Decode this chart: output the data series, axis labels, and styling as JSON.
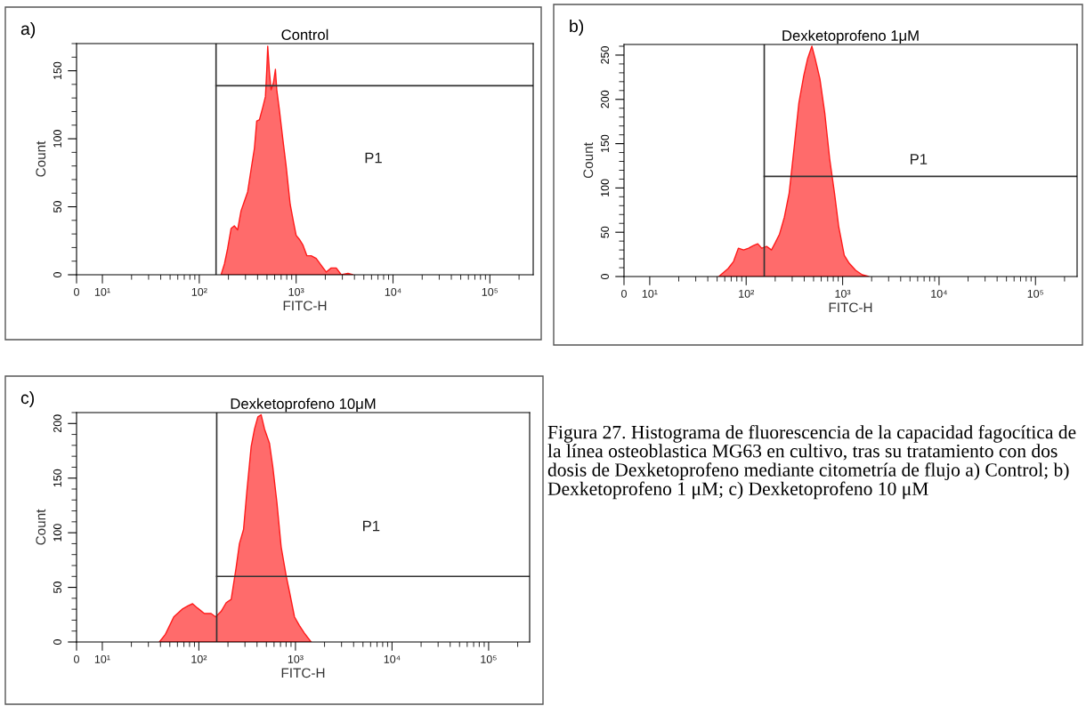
{
  "chart_data": [
    {
      "type": "area",
      "title": "Control",
      "xlabel": "FITC-H",
      "ylabel": "Count",
      "log": "x",
      "xlim": [
        0,
        280000
      ],
      "ylim": [
        0,
        170
      ],
      "xticks": [
        {
          "value": 0,
          "label": "0"
        },
        {
          "value": 10,
          "label": "10¹"
        },
        {
          "value": 100,
          "label": "10²"
        },
        {
          "value": 1000,
          "label": "10³"
        },
        {
          "value": 10000,
          "label": "10⁴"
        },
        {
          "value": 100000,
          "label": "10⁵"
        }
      ],
      "yticks": [
        0,
        50,
        100,
        150
      ],
      "ref_lines": [
        {
          "axis": "x",
          "value": 149,
          "color": "#333333"
        },
        {
          "axis": "y",
          "value": 139,
          "color": "#333333"
        }
      ],
      "annotations": [
        "a)",
        "P1"
      ],
      "series": [
        {
          "color": "#ff6b6b",
          "x": [
            168,
            182,
            196,
            213,
            230,
            249,
            270,
            292,
            316,
            342,
            371,
            392,
            418,
            452,
            482,
            498,
            509,
            530,
            551,
            583,
            611,
            631,
            672,
            728,
            788,
            867,
            938,
            1000,
            1081,
            1172,
            1290,
            1430,
            1610,
            1815,
            2043,
            2300,
            2594,
            2924,
            3428,
            3855
          ],
          "values": [
            0,
            8,
            19,
            34,
            36,
            33,
            47,
            54,
            61,
            77,
            93,
            113,
            114,
            123,
            131,
            151,
            168,
            149,
            136,
            141,
            151,
            136,
            121,
            100,
            80,
            52,
            39,
            29,
            26,
            22,
            14,
            14,
            12,
            7,
            2,
            5,
            5,
            0,
            1,
            0
          ]
        }
      ]
    },
    {
      "type": "area",
      "title": "Dexketoprofeno 1μM",
      "xlabel": "FITC-H",
      "ylabel": "Count",
      "log": "x",
      "xlim": [
        0,
        270000
      ],
      "ylim": [
        0,
        262
      ],
      "xticks": [
        {
          "value": 0,
          "label": "0"
        },
        {
          "value": 10,
          "label": "10¹"
        },
        {
          "value": 100,
          "label": "10²"
        },
        {
          "value": 1000,
          "label": "10³"
        },
        {
          "value": 10000,
          "label": "10⁴"
        },
        {
          "value": 100000,
          "label": "10⁵"
        }
      ],
      "yticks": [
        0,
        50,
        100,
        150,
        200,
        250
      ],
      "ref_lines": [
        {
          "axis": "x",
          "value": 154,
          "color": "#333333"
        },
        {
          "axis": "y",
          "value": 113,
          "color": "#333333"
        }
      ],
      "annotations": [
        "b)",
        "P1"
      ],
      "series": [
        {
          "color": "#ff6b6b",
          "x": [
            52,
            65,
            74,
            83,
            94,
            106,
            119,
            132,
            145,
            163,
            183,
            200,
            222,
            249,
            279,
            314,
            352,
            396,
            434,
            480,
            519,
            582,
            654,
            734,
            824,
            912,
            1040,
            1170,
            1366,
            1596,
            1866
          ],
          "values": [
            0,
            9,
            17,
            32,
            30,
            32,
            35,
            37,
            32,
            34,
            30,
            38,
            48,
            67,
            94,
            145,
            196,
            227,
            246,
            260,
            246,
            223,
            184,
            133,
            94,
            56,
            24,
            15,
            7,
            2,
            0
          ]
        }
      ]
    },
    {
      "type": "area",
      "title": "Dexketoprofeno 10μM",
      "xlabel": "FITC-H",
      "ylabel": "Count",
      "log": "x",
      "xlim": [
        0,
        266000
      ],
      "ylim": [
        0,
        210
      ],
      "xticks": [
        {
          "value": 0,
          "label": "0"
        },
        {
          "value": 10,
          "label": "10¹"
        },
        {
          "value": 100,
          "label": "10²"
        },
        {
          "value": 1000,
          "label": "10³"
        },
        {
          "value": 10000,
          "label": "10⁴"
        },
        {
          "value": 100000,
          "label": "10⁵"
        }
      ],
      "yticks": [
        0,
        50,
        100,
        150,
        200
      ],
      "ref_lines": [
        {
          "axis": "x",
          "value": 153,
          "color": "#333333"
        },
        {
          "axis": "y",
          "value": 60,
          "color": "#333333"
        }
      ],
      "annotations": [
        "c)",
        "P1"
      ],
      "series": [
        {
          "color": "#ff6b6b",
          "x": [
            39,
            45,
            55,
            67,
            77,
            86,
            97,
            114,
            134,
            149,
            170,
            192,
            216,
            243,
            263,
            290,
            314,
            348,
            377,
            408,
            441,
            478,
            538,
            583,
            642,
            711,
            800,
            867,
            977,
            1100,
            1239,
            1452
          ],
          "values": [
            0,
            7,
            23,
            30,
            33,
            35,
            31,
            26,
            26,
            23,
            28,
            36,
            39,
            68,
            90,
            103,
            138,
            179,
            195,
            206,
            208,
            195,
            182,
            160,
            128,
            87,
            61,
            46,
            23,
            15,
            8,
            0
          ]
        }
      ]
    },
    {
      "type": "other",
      "annotations": [
        "Figura 27. Histograma de fluorescencia de la capacidad fagocítica de la línea osteoblastica MG63 en cultivo, tras su tratamiento con dos dosis de Dexketoprofeno mediante citometría de flujo a) Control; b) Dexketoprofeno 1 μM; c) Dexketoprofeno 10 μM"
      ]
    }
  ]
}
